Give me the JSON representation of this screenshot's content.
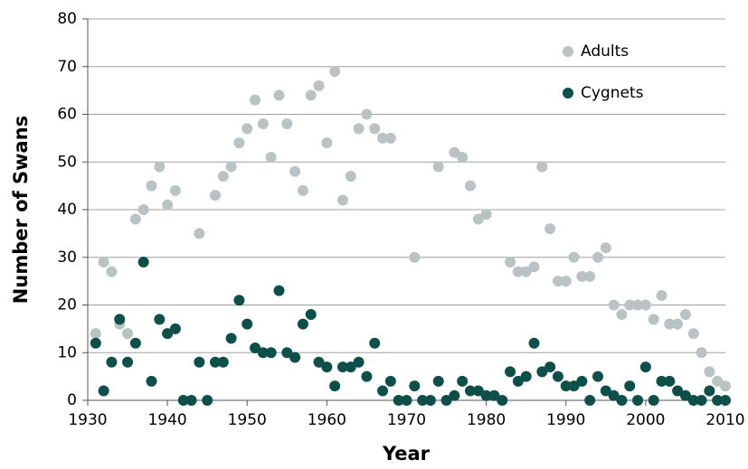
{
  "chart_data": {
    "type": "scatter",
    "xlabel": "Year",
    "ylabel": "Number of Swans",
    "xlim": [
      1930,
      2010
    ],
    "xticks": [
      1930,
      1940,
      1950,
      1960,
      1970,
      1980,
      1990,
      2000,
      2010
    ],
    "ylim": [
      0,
      80
    ],
    "yticks": [
      0,
      10,
      20,
      30,
      40,
      50,
      60,
      70,
      80
    ],
    "grid": true,
    "legend": "upper right",
    "series": [
      {
        "name": "Adults",
        "color": "#b9c3c3",
        "x": [
          1931,
          1932,
          1933,
          1934,
          1935,
          1936,
          1937,
          1938,
          1939,
          1940,
          1941,
          1944,
          1946,
          1947,
          1948,
          1949,
          1950,
          1951,
          1952,
          1953,
          1954,
          1955,
          1956,
          1957,
          1958,
          1959,
          1960,
          1961,
          1962,
          1963,
          1964,
          1965,
          1966,
          1967,
          1968,
          1971,
          1974,
          1976,
          1977,
          1978,
          1979,
          1980,
          1983,
          1984,
          1985,
          1986,
          1987,
          1988,
          1989,
          1990,
          1991,
          1992,
          1993,
          1994,
          1995,
          1996,
          1997,
          1998,
          1999,
          2000,
          2001,
          2002,
          2003,
          2004,
          2005,
          2006,
          2007,
          2008,
          2009,
          2010
        ],
        "values": [
          14,
          29,
          27,
          16,
          14,
          38,
          40,
          45,
          49,
          41,
          44,
          35,
          43,
          47,
          49,
          54,
          57,
          63,
          58,
          51,
          64,
          58,
          48,
          44,
          64,
          66,
          54,
          69,
          42,
          47,
          57,
          60,
          57,
          55,
          55,
          30,
          49,
          52,
          51,
          45,
          38,
          39,
          29,
          27,
          27,
          28,
          49,
          36,
          25,
          25,
          30,
          26,
          26,
          30,
          32,
          20,
          18,
          20,
          20,
          20,
          17,
          22,
          16,
          16,
          18,
          14,
          10,
          6,
          4,
          3
        ]
      },
      {
        "name": "Cygnets",
        "color": "#0e4f49",
        "x": [
          1931,
          1932,
          1933,
          1934,
          1935,
          1936,
          1937,
          1938,
          1939,
          1940,
          1941,
          1942,
          1943,
          1944,
          1945,
          1946,
          1947,
          1948,
          1949,
          1950,
          1951,
          1952,
          1953,
          1954,
          1955,
          1956,
          1957,
          1958,
          1959,
          1960,
          1961,
          1962,
          1963,
          1964,
          1965,
          1966,
          1967,
          1968,
          1969,
          1970,
          1971,
          1972,
          1973,
          1974,
          1975,
          1976,
          1977,
          1978,
          1979,
          1980,
          1981,
          1982,
          1983,
          1984,
          1985,
          1986,
          1987,
          1988,
          1989,
          1990,
          1991,
          1992,
          1993,
          1994,
          1995,
          1996,
          1997,
          1998,
          1999,
          2000,
          2001,
          2002,
          2003,
          2004,
          2005,
          2006,
          2007,
          2008,
          2009,
          2010
        ],
        "values": [
          12,
          2,
          8,
          17,
          8,
          12,
          29,
          4,
          17,
          14,
          15,
          0,
          0,
          8,
          0,
          8,
          8,
          13,
          21,
          16,
          11,
          10,
          10,
          23,
          10,
          9,
          16,
          18,
          8,
          7,
          3,
          7,
          7,
          8,
          5,
          12,
          2,
          4,
          0,
          0,
          3,
          0,
          0,
          4,
          0,
          1,
          4,
          2,
          2,
          1,
          1,
          0,
          6,
          4,
          5,
          12,
          6,
          7,
          5,
          3,
          3,
          4,
          0,
          5,
          2,
          1,
          0,
          3,
          0,
          7,
          0,
          4,
          4,
          2,
          1,
          0,
          0,
          2,
          0,
          0
        ]
      }
    ]
  }
}
